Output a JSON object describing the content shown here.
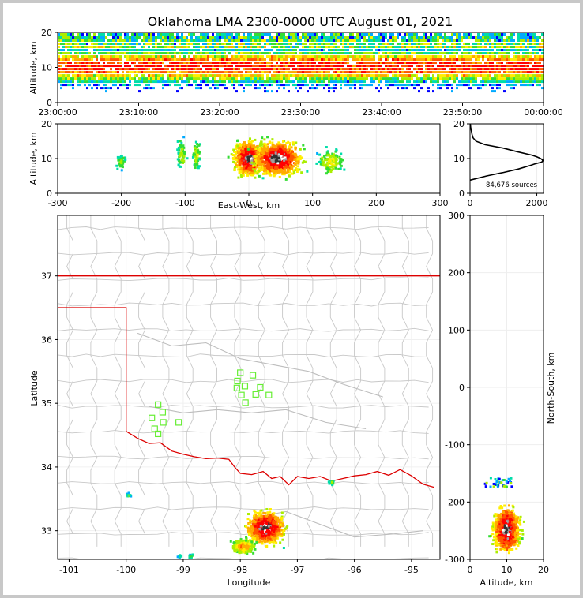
{
  "chart_data": [
    {
      "type": "heatmap",
      "name": "time-altitude",
      "title": "Oklahoma LMA 2300-0000 UTC August 01, 2021",
      "xlabel": "",
      "ylabel": "Altitude, km",
      "ylim": [
        0,
        20
      ],
      "yticks": [
        "0",
        "10",
        "20"
      ],
      "xticks": [
        "23:00:00",
        "23:10:00",
        "23:20:00",
        "23:30:00",
        "23:40:00",
        "23:50:00",
        "00:00:00"
      ],
      "band_altitude_km": [
        6,
        14
      ]
    },
    {
      "type": "heatmap",
      "name": "east-west-altitude",
      "xlabel": "East-West, km",
      "ylabel": "Altitude, km",
      "xlim": [
        -300,
        300
      ],
      "ylim": [
        0,
        20
      ],
      "xticks": [
        "-300",
        "-200",
        "-100",
        "0",
        "100",
        "200",
        "300"
      ],
      "yticks": [
        "0",
        "10",
        "20"
      ],
      "clusters_km": [
        {
          "x": -200,
          "alt": 9
        },
        {
          "x": -105,
          "alt": 11
        },
        {
          "x": -82,
          "alt": 11
        },
        {
          "x": 0,
          "alt": 10
        },
        {
          "x": 45,
          "alt": 10
        },
        {
          "x": 130,
          "alt": 9
        }
      ]
    },
    {
      "type": "line",
      "name": "altitude-histogram",
      "xlim": [
        0,
        2200
      ],
      "ylim": [
        0,
        20
      ],
      "xticks": [
        "0",
        "2000"
      ],
      "yticks": [
        "0",
        "10",
        "20"
      ],
      "annotation": "84,676 sources",
      "profile": {
        "altitude": [
          3.8,
          5,
          6,
          7,
          8,
          8.5,
          9,
          9.5,
          10,
          10.5,
          11,
          12,
          13,
          14,
          15,
          16,
          17,
          18,
          19,
          20
        ],
        "count": [
          0,
          500,
          1000,
          1450,
          1800,
          1950,
          2150,
          2180,
          2120,
          2000,
          1850,
          1400,
          1000,
          450,
          180,
          90,
          60,
          40,
          20,
          10
        ]
      }
    },
    {
      "type": "scatter",
      "name": "plan-view-map",
      "xlabel": "Longitude",
      "ylabel": "Latitude",
      "xlim": [
        -101.2,
        -94.5
      ],
      "ylim": [
        32.55,
        37.95
      ],
      "xticks": [
        "-101",
        "-100",
        "-99",
        "-98",
        "-97",
        "-96",
        "-95"
      ],
      "yticks": [
        "33",
        "34",
        "35",
        "36",
        "37"
      ],
      "stations": [
        {
          "lon": -98.0,
          "lat": 35.48
        },
        {
          "lon": -97.78,
          "lat": 35.44
        },
        {
          "lon": -98.05,
          "lat": 35.35
        },
        {
          "lon": -97.92,
          "lat": 35.27
        },
        {
          "lon": -98.06,
          "lat": 35.24
        },
        {
          "lon": -97.65,
          "lat": 35.25
        },
        {
          "lon": -97.73,
          "lat": 35.14
        },
        {
          "lon": -97.98,
          "lat": 35.13
        },
        {
          "lon": -97.5,
          "lat": 35.13
        },
        {
          "lon": -97.91,
          "lat": 35.01
        },
        {
          "lon": -99.44,
          "lat": 34.98
        },
        {
          "lon": -99.36,
          "lat": 34.86
        },
        {
          "lon": -99.55,
          "lat": 34.77
        },
        {
          "lon": -99.35,
          "lat": 34.7
        },
        {
          "lon": -99.08,
          "lat": 34.7
        },
        {
          "lon": -99.5,
          "lat": 34.6
        },
        {
          "lon": -99.44,
          "lat": 34.52
        }
      ],
      "colors": {
        "stations": "#66ee33",
        "state_line": "#dd0000",
        "counties": "#c8c8c8"
      }
    },
    {
      "type": "heatmap",
      "name": "altitude-north-south",
      "xlabel": "Altitude, km",
      "ylabel": "North-South, km",
      "xlim": [
        0,
        20
      ],
      "ylim": [
        -300,
        300
      ],
      "xticks": [
        "0",
        "10",
        "20"
      ],
      "yticks": [
        "-300",
        "-200",
        "-100",
        "0",
        "100",
        "200",
        "300"
      ]
    }
  ]
}
